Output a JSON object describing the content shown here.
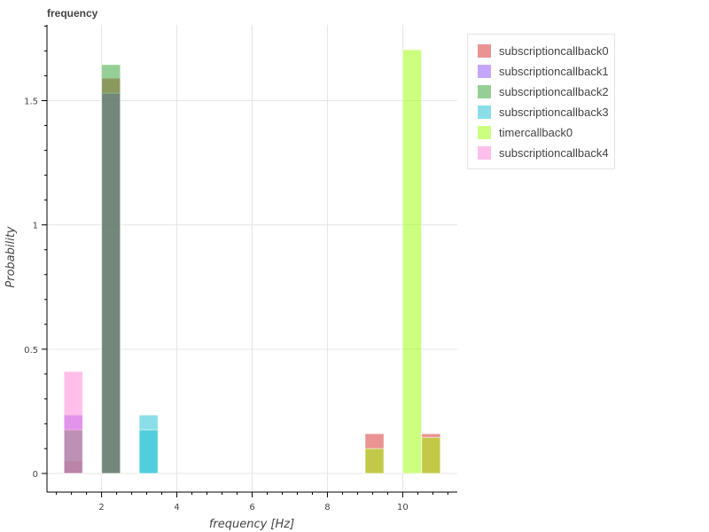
{
  "chart_data": {
    "type": "bar",
    "title": "frequency",
    "xlabel": "frequency [Hz]",
    "ylabel": "Probability",
    "xlim": [
      0.55,
      11.45
    ],
    "ylim": [
      -0.075,
      1.805
    ],
    "x_ticks": [
      2,
      4,
      6,
      8,
      10
    ],
    "y_ticks": [
      0,
      0.5,
      1,
      1.5
    ],
    "y_tick_labels": [
      "0",
      "0.5",
      "1",
      "1.5"
    ],
    "grid": true,
    "legend_position": "top-right",
    "bar_opacity": 0.5,
    "series": [
      {
        "name": "subscriptioncallback0",
        "color": "#d62728",
        "bars": [
          {
            "x0": 1.0,
            "x1": 1.5,
            "y": 0.05
          },
          {
            "x0": 2.0,
            "x1": 2.5,
            "y": 1.59
          },
          {
            "x0": 9.0,
            "x1": 9.5,
            "y": 0.16
          },
          {
            "x0": 10.5,
            "x1": 11.0,
            "y": 0.16
          }
        ]
      },
      {
        "name": "subscriptioncallback1",
        "color": "#8c4dff",
        "bars": [
          {
            "x0": 1.0,
            "x1": 1.5,
            "y": 0.235
          },
          {
            "x0": 2.0,
            "x1": 2.5,
            "y": 1.53
          }
        ]
      },
      {
        "name": "subscriptioncallback2",
        "color": "#2ca02c",
        "bars": [
          {
            "x0": 1.0,
            "x1": 1.5,
            "y": 0.175
          },
          {
            "x0": 2.0,
            "x1": 2.5,
            "y": 1.645
          }
        ]
      },
      {
        "name": "subscriptioncallback3",
        "color": "#17becf",
        "bars": [
          {
            "x0": 3.0,
            "x1": 3.5,
            "y": 0.235
          },
          {
            "x0": 3.0,
            "x1": 3.5,
            "y": 0.175
          }
        ]
      },
      {
        "name": "timercallback0",
        "color": "#99ff00",
        "bars": [
          {
            "x0": 9.0,
            "x1": 9.5,
            "y": 0.1
          },
          {
            "x0": 10.0,
            "x1": 10.5,
            "y": 1.705
          },
          {
            "x0": 10.5,
            "x1": 11.0,
            "y": 0.145
          }
        ]
      },
      {
        "name": "subscriptioncallback4",
        "color": "#ff7fd6",
        "bars": [
          {
            "x0": 1.0,
            "x1": 1.5,
            "y": 0.41
          }
        ]
      }
    ]
  }
}
